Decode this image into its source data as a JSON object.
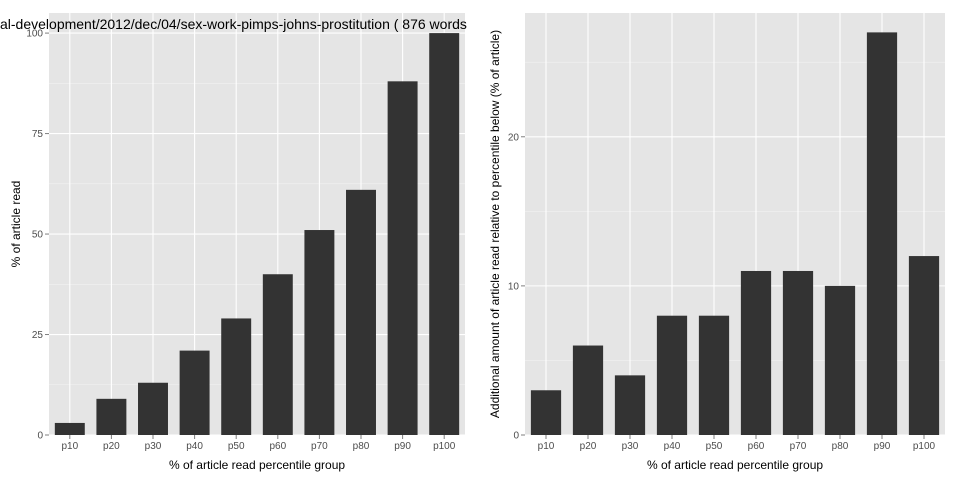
{
  "chart_data": [
    {
      "type": "bar",
      "title": "al-development/2012/dec/04/sex-work-pimps-johns-prostitution ( 876 words",
      "xlabel": "% of article read percentile group",
      "ylabel": "% of article read",
      "categories": [
        "p10",
        "p20",
        "p30",
        "p40",
        "p50",
        "p60",
        "p70",
        "p80",
        "p90",
        "p100"
      ],
      "values": [
        3,
        9,
        13,
        21,
        29,
        40,
        51,
        61,
        88,
        100
      ],
      "ylim": [
        0,
        105
      ],
      "yticks": [
        0,
        25,
        50,
        75,
        100
      ],
      "ytick_labels": [
        "0",
        "25",
        "50",
        "75",
        "100"
      ],
      "grid": true,
      "bar_color": "#333333",
      "panel_color": "#e5e5e5"
    },
    {
      "type": "bar",
      "title": "",
      "xlabel": "% of article read percentile group",
      "ylabel": "Additional amount of article read relative to percentile below (% of article)",
      "categories": [
        "p10",
        "p20",
        "p30",
        "p40",
        "p50",
        "p60",
        "p70",
        "p80",
        "p90",
        "p100"
      ],
      "values": [
        3,
        6,
        4,
        8,
        8,
        11,
        11,
        10,
        27,
        12
      ],
      "ylim": [
        0,
        28.3
      ],
      "yticks": [
        0,
        10,
        20
      ],
      "ytick_labels": [
        "0",
        "10",
        "20"
      ],
      "grid": true,
      "bar_color": "#333333",
      "panel_color": "#e5e5e5"
    }
  ]
}
